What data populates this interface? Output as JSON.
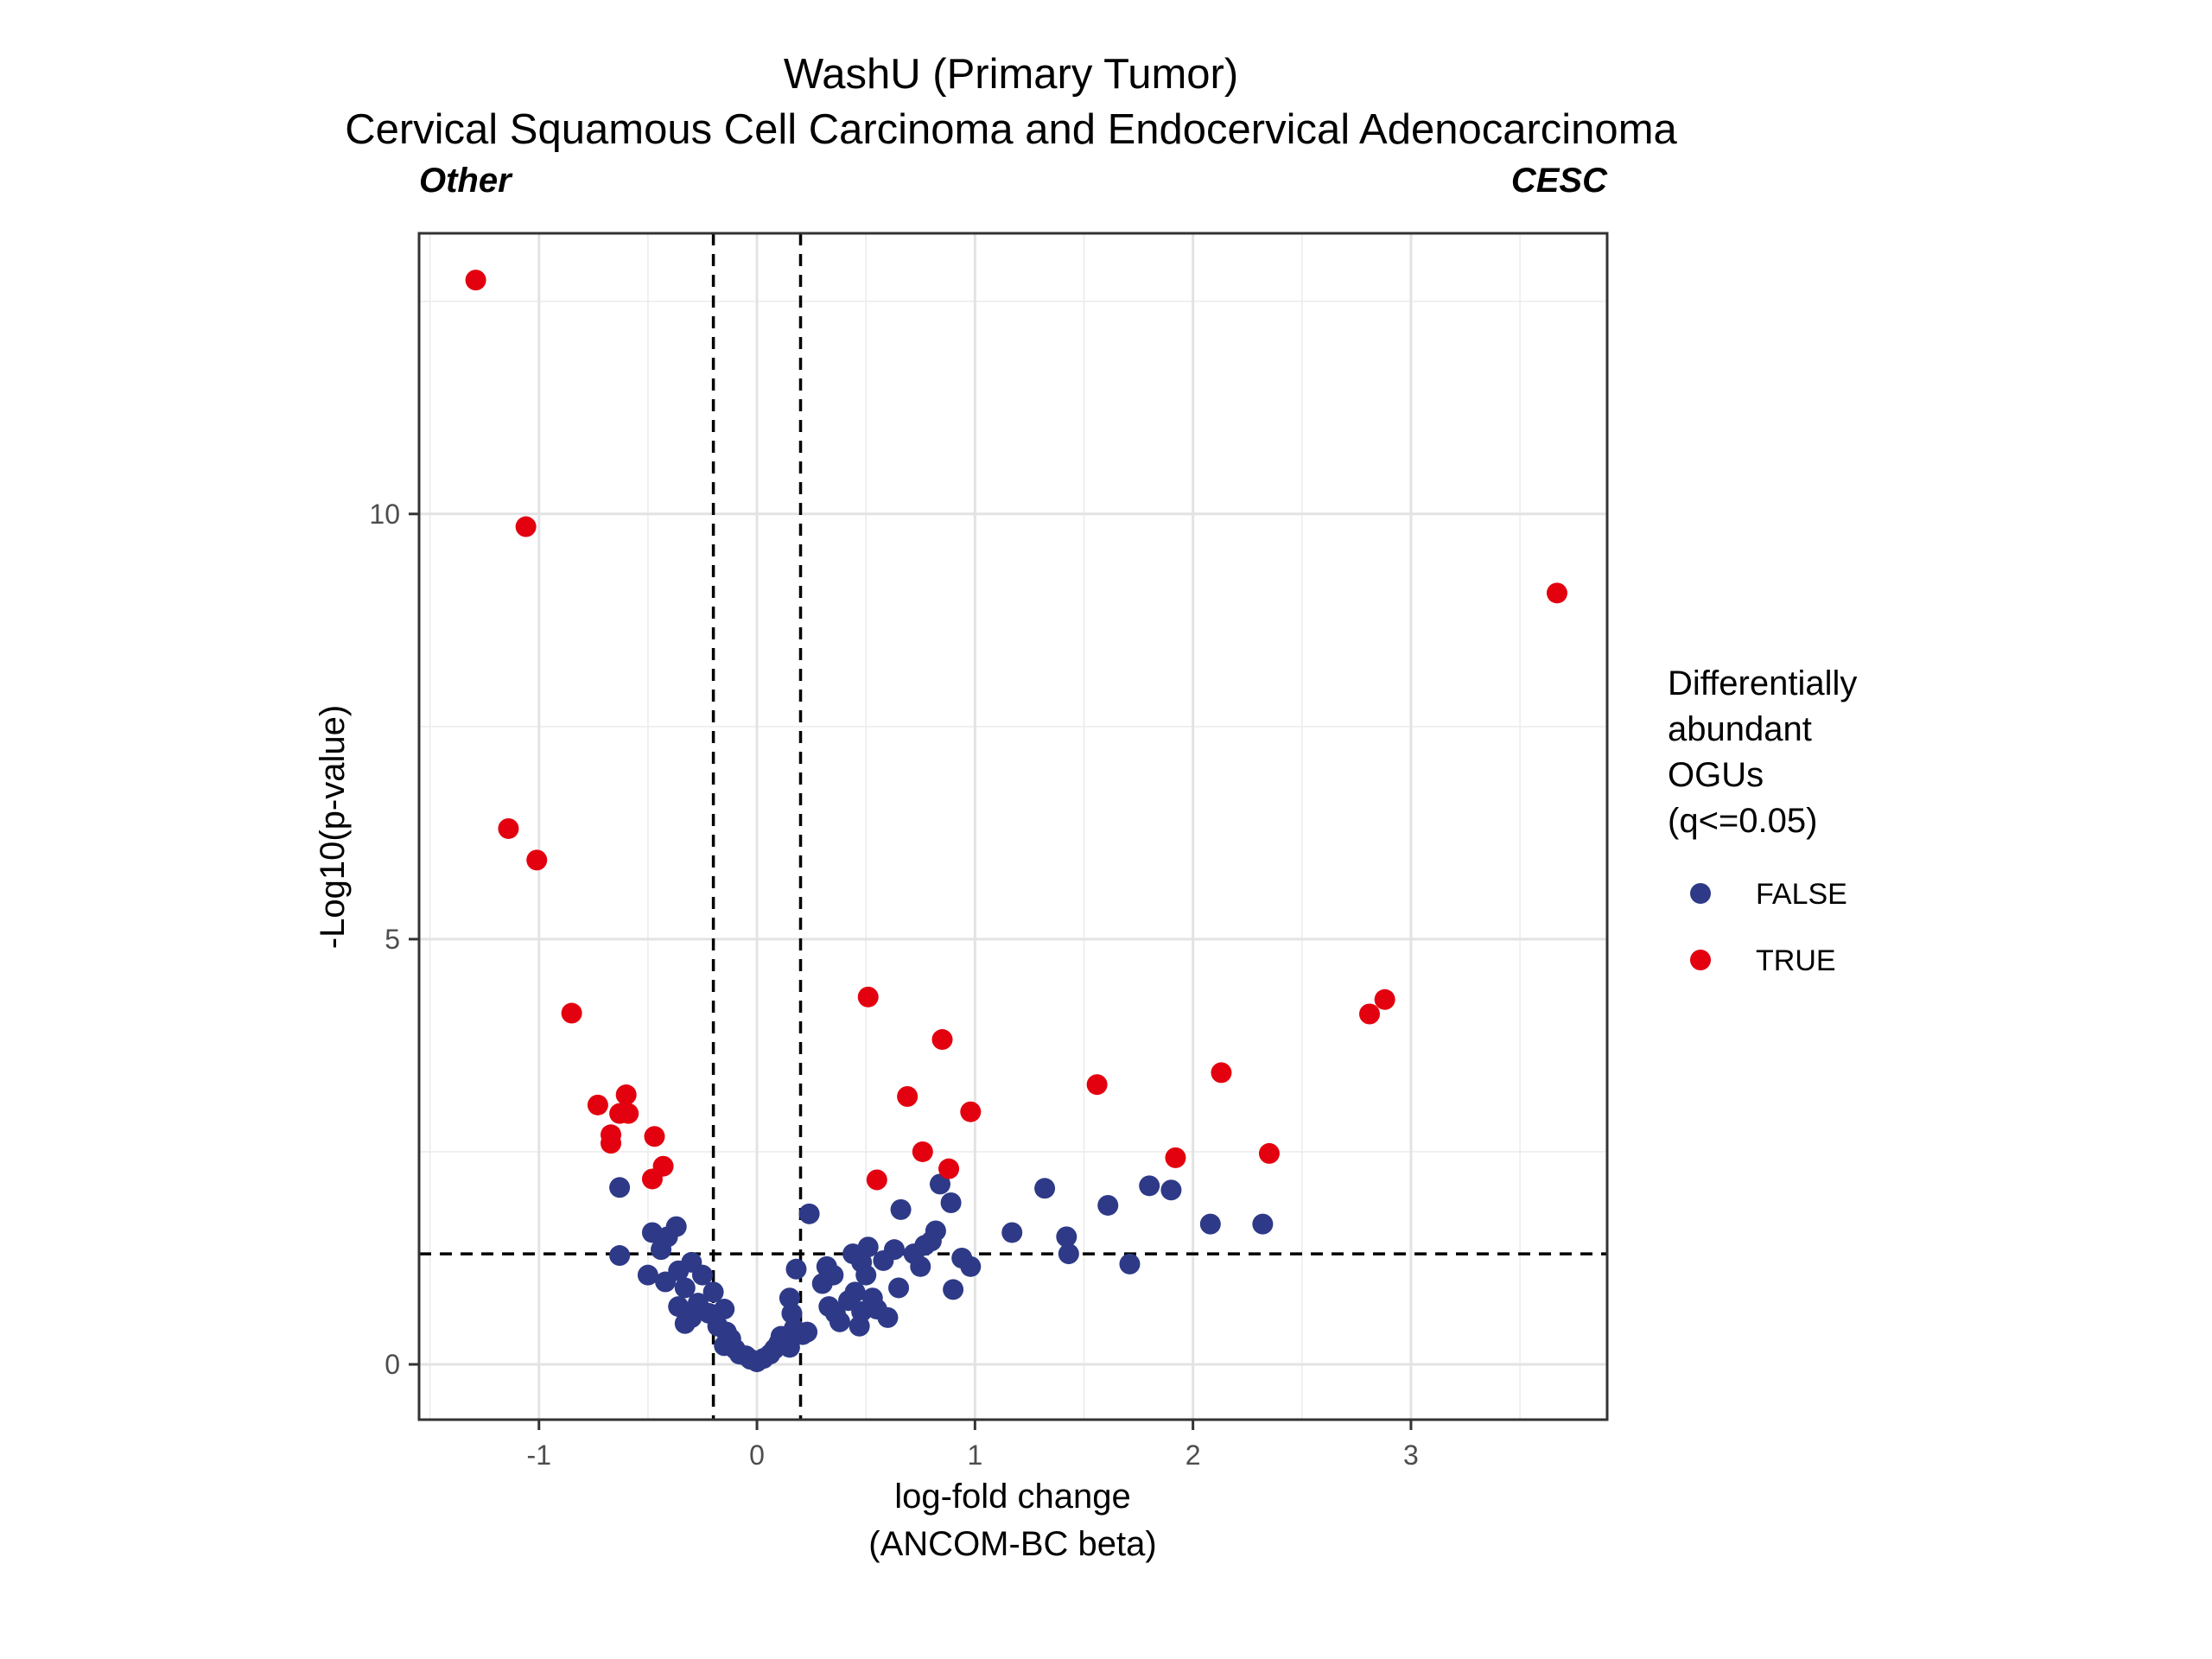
{
  "chart_data": {
    "type": "scatter",
    "title": "WashU (Primary Tumor)",
    "subtitle": "Cervical Squamous Cell Carcinoma and Endocervical Adenocarcinoma",
    "left_group_label": "Other",
    "right_group_label": "CESC",
    "xlabel_line1": "log-fold change",
    "xlabel_line2": "(ANCOM-BC beta)",
    "ylabel": "-Log10(p-value)",
    "xlim": [
      -1.55,
      3.9
    ],
    "ylim": [
      -0.65,
      13.3
    ],
    "x_ticks": [
      -1,
      0,
      1,
      2,
      3
    ],
    "x_tick_labels": [
      "-1",
      "0",
      "1",
      "2",
      "3"
    ],
    "y_ticks": [
      0,
      5,
      10
    ],
    "y_tick_labels": [
      "0",
      "5",
      "10"
    ],
    "threshold_lines": {
      "x": [
        -0.2,
        0.2
      ],
      "y": 1.3
    },
    "grid": true,
    "legend": {
      "title_lines": [
        "Differentially",
        "abundant",
        "OGUs",
        "(q<=0.05)"
      ],
      "position": "right",
      "entries": [
        {
          "label": "FALSE",
          "color": "#2E3A87"
        },
        {
          "label": "TRUE",
          "color": "#E3000F"
        }
      ]
    },
    "series": [
      {
        "name": "TRUE",
        "color": "#E3000F",
        "points": [
          [
            -1.29,
            12.75
          ],
          [
            -1.06,
            9.85
          ],
          [
            -1.14,
            6.3
          ],
          [
            -1.01,
            5.93
          ],
          [
            -0.85,
            4.13
          ],
          [
            -0.73,
            3.05
          ],
          [
            -0.6,
            3.17
          ],
          [
            -0.63,
            2.95
          ],
          [
            -0.59,
            2.95
          ],
          [
            -0.67,
            2.7
          ],
          [
            -0.67,
            2.6
          ],
          [
            -0.47,
            2.68
          ],
          [
            -0.43,
            2.33
          ],
          [
            -0.48,
            2.18
          ],
          [
            0.51,
            4.32
          ],
          [
            0.85,
            3.82
          ],
          [
            0.69,
            3.15
          ],
          [
            0.98,
            2.97
          ],
          [
            0.76,
            2.5
          ],
          [
            0.88,
            2.3
          ],
          [
            0.55,
            2.17
          ],
          [
            1.56,
            3.29
          ],
          [
            2.13,
            3.43
          ],
          [
            1.92,
            2.43
          ],
          [
            2.35,
            2.48
          ],
          [
            2.81,
            4.12
          ],
          [
            2.88,
            4.29
          ],
          [
            3.67,
            9.07
          ]
        ]
      },
      {
        "name": "FALSE",
        "color": "#2E3A87",
        "points": [
          [
            -0.63,
            2.08
          ],
          [
            -0.63,
            1.28
          ],
          [
            -0.48,
            1.55
          ],
          [
            -0.41,
            1.5
          ],
          [
            -0.37,
            1.62
          ],
          [
            -0.44,
            1.35
          ],
          [
            -0.3,
            1.2
          ],
          [
            -0.36,
            1.1
          ],
          [
            -0.5,
            1.05
          ],
          [
            -0.42,
            0.97
          ],
          [
            -0.33,
            0.9
          ],
          [
            -0.25,
            1.05
          ],
          [
            -0.2,
            0.85
          ],
          [
            -0.36,
            0.68
          ],
          [
            -0.3,
            0.55
          ],
          [
            -0.33,
            0.48
          ],
          [
            -0.27,
            0.72
          ],
          [
            -0.22,
            0.6
          ],
          [
            -0.15,
            0.65
          ],
          [
            -0.18,
            0.45
          ],
          [
            -0.14,
            0.38
          ],
          [
            -0.12,
            0.3
          ],
          [
            -0.15,
            0.22
          ],
          [
            -0.1,
            0.18
          ],
          [
            -0.08,
            0.12
          ],
          [
            -0.05,
            0.1
          ],
          [
            -0.03,
            0.06
          ],
          [
            0.0,
            0.03
          ],
          [
            0.03,
            0.07
          ],
          [
            0.06,
            0.12
          ],
          [
            0.08,
            0.18
          ],
          [
            0.1,
            0.25
          ],
          [
            0.11,
            0.33
          ],
          [
            0.15,
            0.2
          ],
          [
            0.17,
            0.42
          ],
          [
            0.16,
            0.6
          ],
          [
            0.15,
            0.78
          ],
          [
            0.18,
            1.12
          ],
          [
            0.21,
            0.35
          ],
          [
            0.24,
            1.77
          ],
          [
            0.23,
            0.38
          ],
          [
            0.32,
            1.15
          ],
          [
            0.3,
            0.95
          ],
          [
            0.35,
            1.05
          ],
          [
            0.33,
            0.68
          ],
          [
            0.36,
            0.6
          ],
          [
            0.38,
            0.5
          ],
          [
            0.42,
            0.75
          ],
          [
            0.45,
            0.85
          ],
          [
            0.44,
            1.3
          ],
          [
            0.51,
            1.38
          ],
          [
            0.48,
            1.2
          ],
          [
            0.5,
            1.05
          ],
          [
            0.53,
            0.78
          ],
          [
            0.48,
            0.62
          ],
          [
            0.47,
            0.45
          ],
          [
            0.55,
            0.65
          ],
          [
            0.58,
            1.22
          ],
          [
            0.6,
            0.55
          ],
          [
            0.65,
            0.9
          ],
          [
            0.63,
            1.35
          ],
          [
            0.66,
            1.82
          ],
          [
            0.72,
            1.3
          ],
          [
            0.75,
            1.15
          ],
          [
            0.77,
            1.4
          ],
          [
            0.8,
            1.45
          ],
          [
            0.82,
            1.57
          ],
          [
            0.84,
            2.12
          ],
          [
            0.89,
            1.9
          ],
          [
            0.9,
            0.88
          ],
          [
            0.94,
            1.25
          ],
          [
            0.98,
            1.15
          ],
          [
            1.17,
            1.55
          ],
          [
            1.32,
            2.07
          ],
          [
            1.42,
            1.5
          ],
          [
            1.43,
            1.3
          ],
          [
            1.61,
            1.87
          ],
          [
            1.71,
            1.18
          ],
          [
            1.8,
            2.1
          ],
          [
            1.9,
            2.05
          ],
          [
            2.08,
            1.65
          ],
          [
            2.32,
            1.65
          ]
        ]
      }
    ]
  }
}
